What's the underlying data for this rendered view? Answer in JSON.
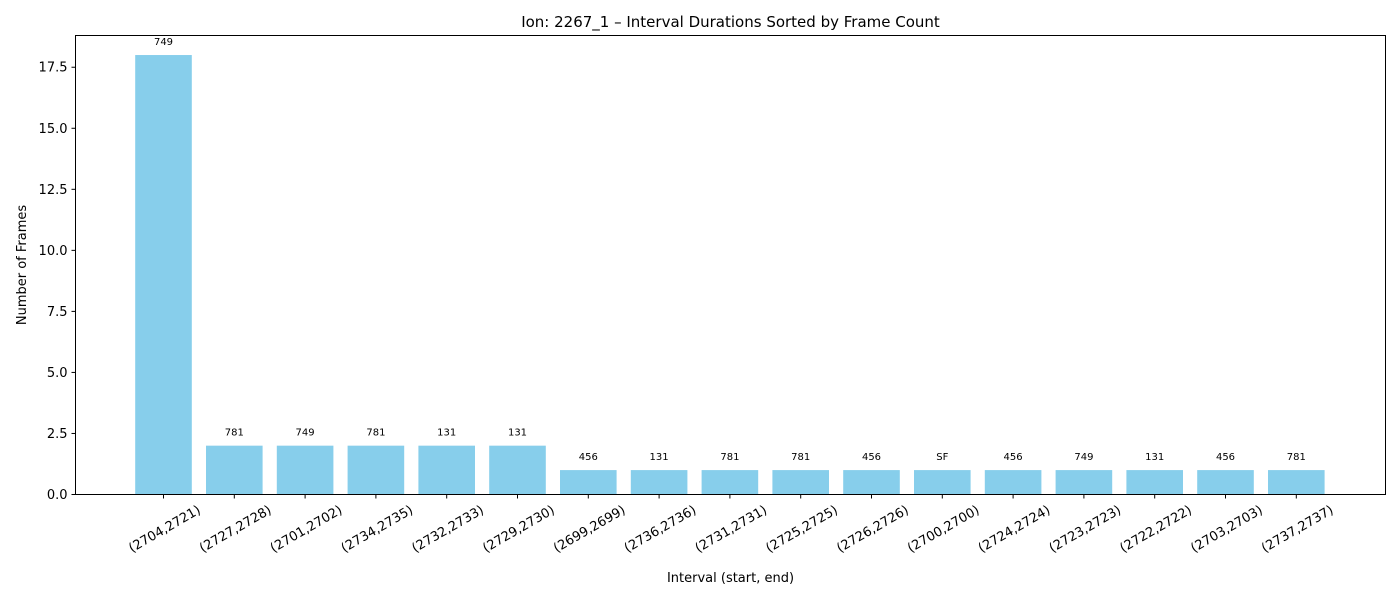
{
  "chart_data": {
    "type": "bar",
    "title": "Ion: 2267_1 – Interval Durations Sorted by Frame Count",
    "xlabel": "Interval (start, end)",
    "ylabel": "Number of Frames",
    "ylim": [
      0,
      18.8
    ],
    "yticks": [
      "0.0",
      "2.5",
      "5.0",
      "7.5",
      "10.0",
      "12.5",
      "15.0",
      "17.5"
    ],
    "ytick_values": [
      0,
      2.5,
      5,
      7.5,
      10,
      12.5,
      15,
      17.5
    ],
    "categories": [
      "(2704,2721)",
      "(2727,2728)",
      "(2701,2702)",
      "(2734,2735)",
      "(2732,2733)",
      "(2729,2730)",
      "(2699,2699)",
      "(2736,2736)",
      "(2731,2731)",
      "(2725,2725)",
      "(2726,2726)",
      "(2700,2700)",
      "(2724,2724)",
      "(2723,2723)",
      "(2722,2722)",
      "(2703,2703)",
      "(2737,2737)"
    ],
    "values": [
      18,
      2,
      2,
      2,
      2,
      2,
      1,
      1,
      1,
      1,
      1,
      1,
      1,
      1,
      1,
      1,
      1
    ],
    "bar_labels": [
      "749",
      "781",
      "749",
      "781",
      "131",
      "131",
      "456",
      "131",
      "781",
      "781",
      "456",
      "SF",
      "456",
      "749",
      "131",
      "456",
      "781"
    ],
    "bar_color": "#87CEEB",
    "grid": false,
    "legend": "none"
  }
}
